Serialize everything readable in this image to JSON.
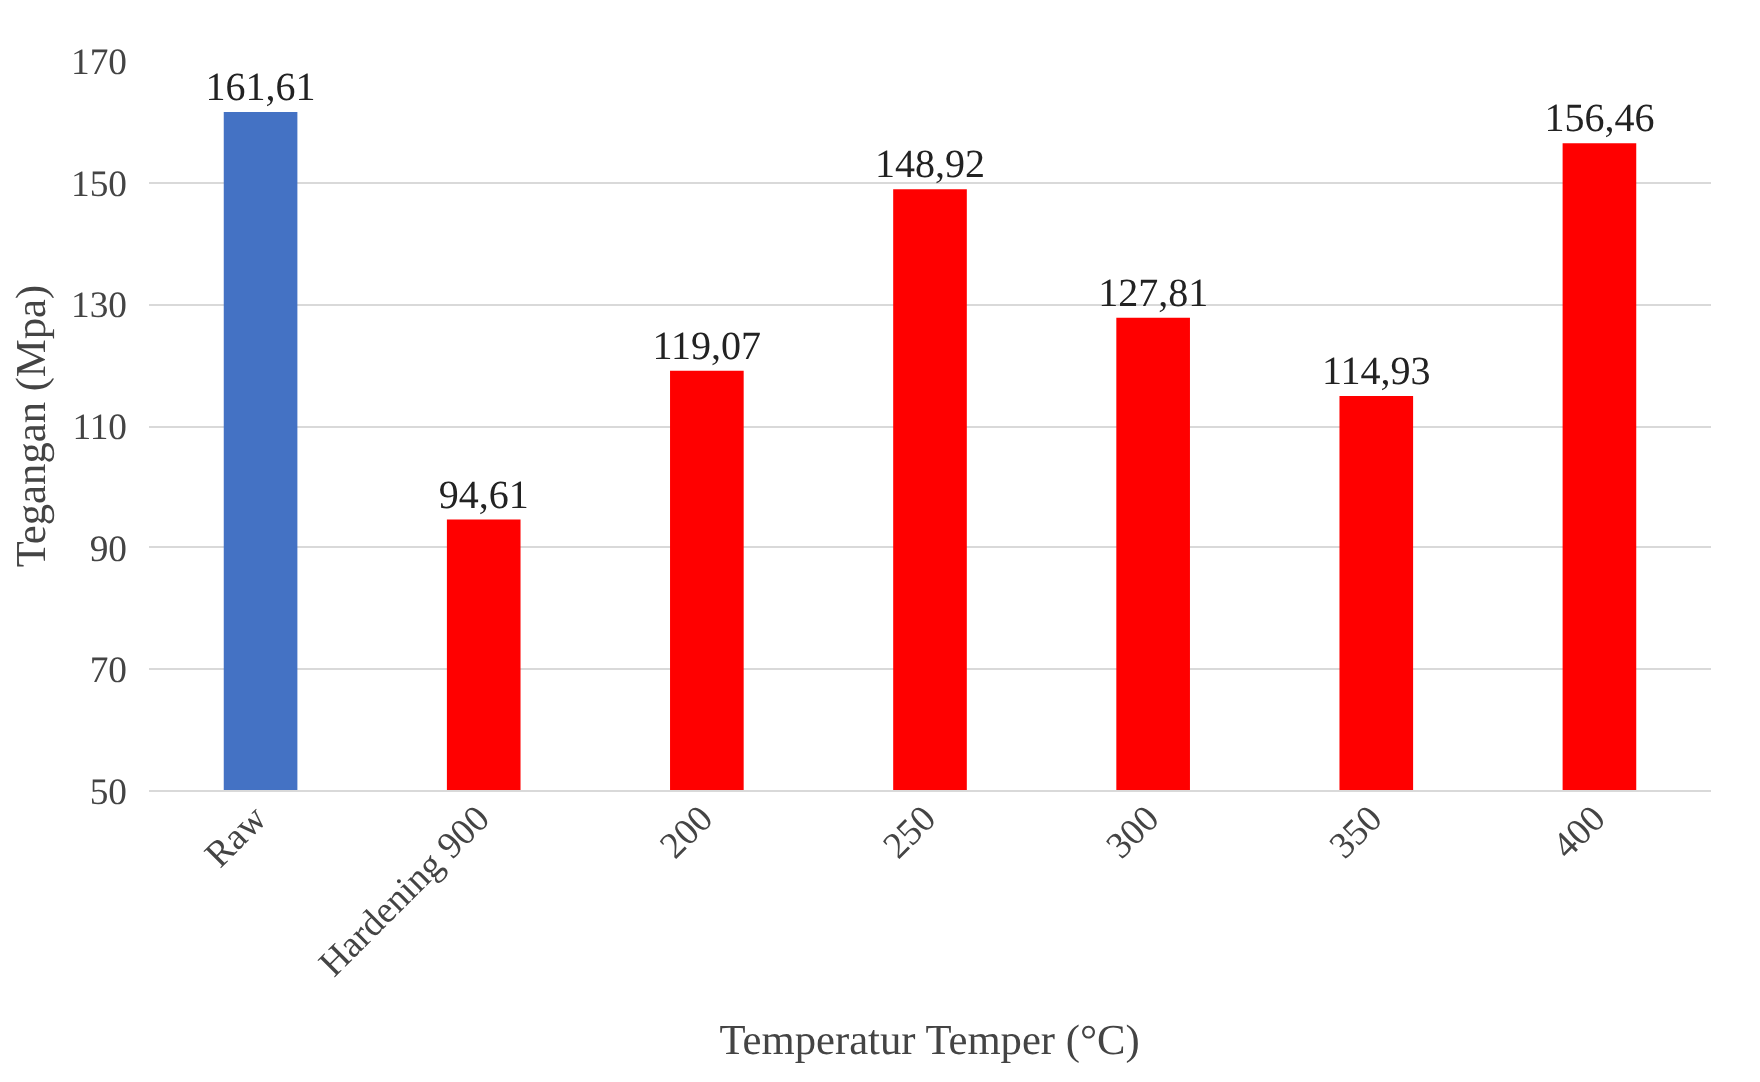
{
  "chart_data": {
    "type": "bar",
    "xlabel": "Temperatur Temper (°C)",
    "ylabel": "Tegangan (Mpa)",
    "categories": [
      "Raw",
      "Hardening 900",
      "200",
      "250",
      "300",
      "350",
      "400"
    ],
    "values": [
      161.61,
      94.61,
      119.07,
      148.92,
      127.81,
      114.93,
      156.46
    ],
    "colors": [
      "#4472c4",
      "#ff0000",
      "#ff0000",
      "#ff0000",
      "#ff0000",
      "#ff0000",
      "#ff0000"
    ],
    "value_labels": [
      "161,61",
      "94,61",
      "119,07",
      "148,92",
      "127,81",
      "114,93",
      "156,46"
    ],
    "ylim": [
      50,
      170
    ],
    "yticks": [
      50,
      70,
      90,
      110,
      130,
      150,
      170
    ],
    "grid": "y"
  }
}
